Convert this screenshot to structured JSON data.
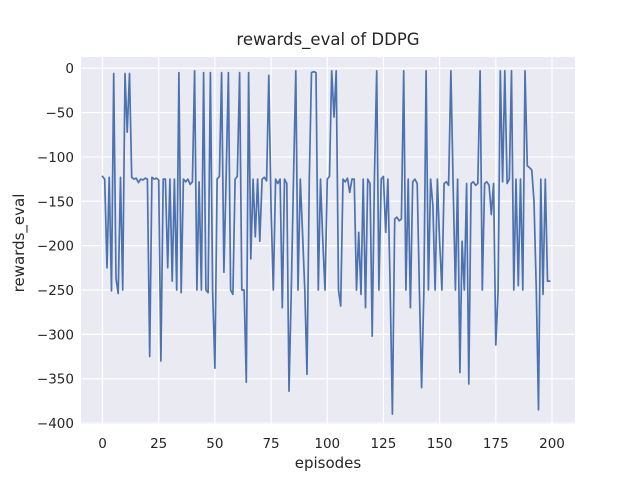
{
  "figure": {
    "colors": {
      "figure_background": "#ffffff",
      "axes_background": "#eaeaf2",
      "gridline": "#ffffff",
      "line": "#4c72b0",
      "text": "#262626"
    }
  },
  "chart_data": {
    "type": "line",
    "title": "rewards_eval of DDPG",
    "xlabel": "episodes",
    "ylabel": "rewards_eval",
    "x_ticks": [
      0,
      25,
      50,
      75,
      100,
      125,
      150,
      175,
      200
    ],
    "y_ticks": [
      0,
      -50,
      -100,
      -150,
      -200,
      -250,
      -300,
      -350,
      -400
    ],
    "xlim": [
      -10,
      210
    ],
    "ylim": [
      -401,
      10
    ],
    "grid": true,
    "legend": "none",
    "series": [
      {
        "name": "rewards_eval",
        "color": "#4c72b0",
        "x_start": 0,
        "x_step": 1,
        "values": [
          -122,
          -125,
          -225,
          -123,
          -251,
          -6,
          -237,
          -254,
          -123,
          -250,
          -6,
          -72,
          -6,
          -123,
          -125,
          -124,
          -129,
          -125,
          -126,
          -124,
          -125,
          -325,
          -123,
          -125,
          -124,
          -126,
          -330,
          -125,
          -125,
          -225,
          -125,
          -240,
          -125,
          -250,
          -5,
          -253,
          -125,
          -128,
          -125,
          -131,
          -128,
          -3,
          -250,
          -128,
          -250,
          -5,
          -250,
          -253,
          -5,
          -250,
          -338,
          -125,
          -122,
          -5,
          -230,
          -125,
          -5,
          -250,
          -255,
          -125,
          -122,
          -5,
          -250,
          -250,
          -354,
          -5,
          -215,
          -125,
          -190,
          -125,
          -195,
          -125,
          -123,
          -127,
          -8,
          -160,
          -250,
          -125,
          -130,
          -125,
          -270,
          -125,
          -130,
          -364,
          -250,
          -125,
          -3,
          -250,
          -125,
          -185,
          -250,
          -345,
          -125,
          -5,
          -4,
          -5,
          -250,
          -125,
          -195,
          -250,
          -125,
          -122,
          -3,
          -55,
          -3,
          -250,
          -268,
          -125,
          -128,
          -124,
          -140,
          -125,
          -125,
          -250,
          -185,
          -255,
          -125,
          -270,
          -125,
          -130,
          -302,
          -125,
          -3,
          -250,
          -125,
          -122,
          -185,
          -125,
          -250,
          -390,
          -170,
          -168,
          -172,
          -170,
          -3,
          -250,
          -125,
          -270,
          -128,
          -125,
          -130,
          -250,
          -360,
          -250,
          -3,
          -250,
          -125,
          -155,
          -250,
          -125,
          -195,
          -250,
          -130,
          -128,
          -132,
          -3,
          -130,
          -250,
          -125,
          -343,
          -195,
          -250,
          -130,
          -356,
          -130,
          -128,
          -132,
          -130,
          -3,
          -250,
          -130,
          -128,
          -132,
          -165,
          -130,
          -312,
          -250,
          -3,
          -128,
          -3,
          -130,
          -125,
          -3,
          -250,
          -125,
          -245,
          -125,
          -250,
          -3,
          -110,
          -112,
          -115,
          -150,
          -250,
          -385,
          -125,
          -255,
          -125,
          -240,
          -240
        ]
      }
    ]
  }
}
